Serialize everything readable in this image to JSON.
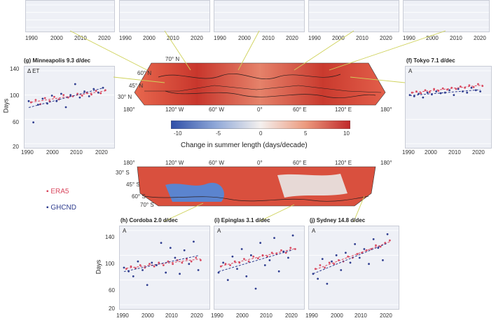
{
  "page": {
    "legend": [
      {
        "label": "ERA5",
        "color": "#d9485f"
      },
      {
        "label": "GHCND",
        "color": "#2f3d8f"
      }
    ],
    "colorbar": {
      "label": "Change in summer length (days/decade)",
      "ticks": [
        "-10",
        "-5",
        "0",
        "5",
        "10"
      ]
    },
    "map_north": {
      "lon_ticks": [
        "180°",
        "120° W",
        "60° W",
        "0°",
        "60° E",
        "120° E",
        "180°"
      ],
      "lat_ticks": [
        "70° N",
        "60° N",
        "45° N",
        "30° N"
      ]
    },
    "map_south": {
      "lon_ticks": [
        "180°",
        "120° W",
        "60° W",
        "0°",
        "60° E",
        "120° E",
        "180°"
      ],
      "lat_ticks": [
        "30° S",
        "45° S",
        "60° S",
        "70° S"
      ]
    },
    "ylabel": "Days",
    "colors": {
      "era5": "#d9485f",
      "ghcnd": "#2f3d8f",
      "panel_bg": "#eef0f6"
    }
  },
  "chart_data": [
    {
      "type": "scatter",
      "title": "(g) Minneapolis 9.3 d/dec",
      "letter": "Δ ET",
      "ylabel": "Days",
      "xlim": [
        1990,
        2025
      ],
      "ylim": [
        20,
        140
      ],
      "xticks": [
        "1990",
        "2000",
        "2010",
        "2020"
      ],
      "yticks": [
        "140",
        "100",
        "60",
        "20"
      ],
      "series": [
        {
          "name": "ERA5",
          "x": [
            1991,
            1993,
            1995,
            1997,
            1999,
            2001,
            2003,
            2005,
            2007,
            2009,
            2011,
            2013,
            2015,
            2017,
            2019,
            2021,
            2023
          ],
          "y": [
            88,
            92,
            85,
            95,
            90,
            97,
            93,
            100,
            96,
            98,
            102,
            99,
            104,
            101,
            107,
            103,
            108
          ]
        },
        {
          "name": "GHCND",
          "x": [
            1990,
            1992,
            1994,
            1996,
            1998,
            2000,
            2002,
            2004,
            2006,
            2008,
            2010,
            2012,
            2014,
            2016,
            2018,
            2020,
            2022
          ],
          "y": [
            90,
            55,
            84,
            94,
            86,
            99,
            90,
            102,
            80,
            100,
            118,
            96,
            106,
            98,
            110,
            104,
            112
          ]
        }
      ]
    },
    {
      "type": "scatter",
      "title": "(f) Tokyo 7.1 d/dec",
      "letter": "A",
      "xlim": [
        1990,
        2025
      ],
      "ylim": [
        20,
        140
      ],
      "xticks": [
        "1990",
        "2000",
        "2010",
        "2020"
      ],
      "series": [
        {
          "name": "ERA5",
          "x": [
            1991,
            1993,
            1995,
            1997,
            1999,
            2001,
            2003,
            2005,
            2007,
            2009,
            2011,
            2013,
            2015,
            2017,
            2019,
            2021,
            2023
          ],
          "y": [
            104,
            106,
            103,
            108,
            105,
            110,
            107,
            111,
            109,
            112,
            110,
            114,
            112,
            116,
            113,
            118,
            115
          ]
        },
        {
          "name": "GHCND",
          "x": [
            1990,
            1992,
            1994,
            1996,
            1998,
            2000,
            2002,
            2004,
            2006,
            2008,
            2010,
            2012,
            2014,
            2016,
            2018,
            2020,
            2022
          ],
          "y": [
            100,
            98,
            102,
            96,
            104,
            101,
            106,
            103,
            104,
            108,
            100,
            110,
            106,
            104,
            112,
            108,
            106
          ]
        }
      ]
    },
    {
      "type": "scatter",
      "title": "(h) Cordoba 2.0 d/dec",
      "letter": "A",
      "ylabel": "Days",
      "xlim": [
        1990,
        2025
      ],
      "ylim": [
        20,
        140
      ],
      "xticks": [
        "1990",
        "2000",
        "2010",
        "2020"
      ],
      "yticks": [
        "140",
        "100",
        "60",
        "20"
      ],
      "series": [
        {
          "name": "ERA5",
          "x": [
            1991,
            1993,
            1995,
            1997,
            1999,
            2001,
            2003,
            2005,
            2007,
            2009,
            2011,
            2013,
            2015,
            2017,
            2019,
            2021,
            2023
          ],
          "y": [
            78,
            82,
            79,
            84,
            80,
            86,
            82,
            88,
            84,
            90,
            86,
            92,
            88,
            94,
            90,
            96,
            92
          ]
        },
        {
          "name": "GHCND",
          "x": [
            1990,
            1992,
            1994,
            1996,
            1998,
            2000,
            2002,
            2004,
            2006,
            2008,
            2010,
            2012,
            2014,
            2016,
            2018,
            2020,
            2022
          ],
          "y": [
            80,
            74,
            66,
            90,
            76,
            52,
            88,
            84,
            120,
            72,
            112,
            96,
            70,
            108,
            86,
            122,
            76
          ]
        }
      ]
    },
    {
      "type": "scatter",
      "title": "(i) Epinglas 3.1 d/dec",
      "letter": "A",
      "xlim": [
        1990,
        2025
      ],
      "ylim": [
        20,
        140
      ],
      "xticks": [
        "1990",
        "2000",
        "2010",
        "2020"
      ],
      "series": [
        {
          "name": "ERA5",
          "x": [
            1991,
            1993,
            1995,
            1997,
            1999,
            2001,
            2003,
            2005,
            2007,
            2009,
            2011,
            2013,
            2015,
            2017,
            2019,
            2021,
            2023
          ],
          "y": [
            82,
            86,
            84,
            90,
            88,
            94,
            90,
            98,
            95,
            100,
            98,
            104,
            102,
            108,
            104,
            112,
            110
          ]
        },
        {
          "name": "GHCND",
          "x": [
            1990,
            1992,
            1994,
            1996,
            1998,
            2000,
            2002,
            2004,
            2006,
            2008,
            2010,
            2012,
            2014,
            2016,
            2018,
            2020,
            2022
          ],
          "y": [
            72,
            88,
            60,
            98,
            78,
            110,
            66,
            100,
            46,
            120,
            84,
            92,
            128,
            74,
            106,
            96,
            132
          ]
        }
      ]
    },
    {
      "type": "scatter",
      "title": "(j) Sydney 14.8 d/dec",
      "letter": "A",
      "xlim": [
        1990,
        2025
      ],
      "ylim": [
        20,
        140
      ],
      "xticks": [
        "1990",
        "2000",
        "2010",
        "2020"
      ],
      "series": [
        {
          "name": "ERA5",
          "x": [
            1991,
            1993,
            1995,
            1997,
            1999,
            2001,
            2003,
            2005,
            2007,
            2009,
            2011,
            2013,
            2015,
            2017,
            2019,
            2021,
            2023
          ],
          "y": [
            78,
            84,
            80,
            88,
            86,
            92,
            90,
            98,
            96,
            102,
            104,
            108,
            110,
            116,
            114,
            120,
            124
          ]
        },
        {
          "name": "GHCND",
          "x": [
            1990,
            1992,
            1994,
            1996,
            1998,
            2000,
            2002,
            2004,
            2006,
            2008,
            2010,
            2012,
            2014,
            2016,
            2018,
            2020,
            2022
          ],
          "y": [
            70,
            62,
            94,
            54,
            90,
            100,
            76,
            104,
            88,
            118,
            96,
            110,
            86,
            126,
            112,
            92,
            134
          ]
        }
      ]
    },
    {
      "type": "scatter",
      "title": "",
      "xlim": [
        1990,
        2025
      ],
      "ylim": [
        20,
        140
      ],
      "xticks": [
        "1990",
        "2000",
        "2010",
        "2020"
      ],
      "series": []
    },
    {
      "type": "scatter",
      "title": "",
      "xlim": [
        1990,
        2025
      ],
      "ylim": [
        20,
        140
      ],
      "xticks": [
        "1990",
        "2000",
        "2010",
        "2020"
      ],
      "series": []
    },
    {
      "type": "scatter",
      "title": "",
      "xlim": [
        1990,
        2025
      ],
      "ylim": [
        20,
        140
      ],
      "xticks": [
        "1990",
        "2000",
        "2010",
        "2020"
      ],
      "series": []
    },
    {
      "type": "scatter",
      "title": "",
      "xlim": [
        1990,
        2025
      ],
      "ylim": [
        20,
        140
      ],
      "xticks": [
        "1990",
        "2000",
        "2010",
        "2020"
      ],
      "series": []
    },
    {
      "type": "scatter",
      "title": "",
      "xlim": [
        1990,
        2025
      ],
      "ylim": [
        20,
        140
      ],
      "xticks": [
        "1990",
        "2000",
        "2010",
        "2020"
      ],
      "series": []
    }
  ]
}
